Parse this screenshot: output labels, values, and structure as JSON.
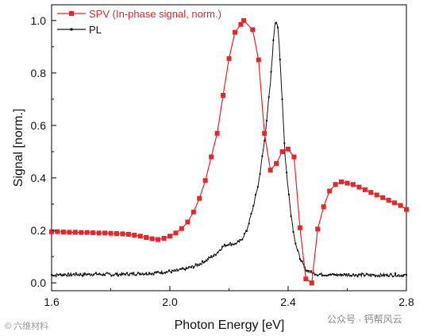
{
  "chart_data": {
    "type": "line",
    "xlabel": "Photon Energy [eV]",
    "ylabel": "Signal [norm.]",
    "xlim": [
      1.6,
      2.8
    ],
    "ylim": [
      -0.03,
      1.06
    ],
    "x_ticks": [
      1.6,
      2.0,
      2.4,
      2.8
    ],
    "x_tick_labels": [
      "1.6",
      "2.0",
      "2.4",
      "2.8"
    ],
    "y_ticks": [
      0.0,
      0.2,
      0.4,
      0.6,
      0.8,
      1.0
    ],
    "y_tick_labels": [
      "0.0",
      "0.2",
      "0.4",
      "0.6",
      "0.8",
      "1.0"
    ],
    "grid": false,
    "legend_position": "top-left",
    "series": [
      {
        "name": "SPV (In-phase signal, norm.)",
        "color": "#e8262a",
        "marker": "square",
        "points": [
          [
            1.6,
            0.195
          ],
          [
            1.62,
            0.195
          ],
          [
            1.64,
            0.194
          ],
          [
            1.66,
            0.193
          ],
          [
            1.68,
            0.193
          ],
          [
            1.7,
            0.192
          ],
          [
            1.72,
            0.192
          ],
          [
            1.74,
            0.191
          ],
          [
            1.76,
            0.19
          ],
          [
            1.78,
            0.19
          ],
          [
            1.8,
            0.189
          ],
          [
            1.82,
            0.188
          ],
          [
            1.84,
            0.187
          ],
          [
            1.86,
            0.185
          ],
          [
            1.88,
            0.182
          ],
          [
            1.9,
            0.178
          ],
          [
            1.92,
            0.173
          ],
          [
            1.94,
            0.168
          ],
          [
            1.96,
            0.165
          ],
          [
            1.98,
            0.17
          ],
          [
            2.0,
            0.178
          ],
          [
            2.02,
            0.19
          ],
          [
            2.04,
            0.207
          ],
          [
            2.06,
            0.232
          ],
          [
            2.08,
            0.27
          ],
          [
            2.1,
            0.322
          ],
          [
            2.12,
            0.39
          ],
          [
            2.14,
            0.48
          ],
          [
            2.16,
            0.57
          ],
          [
            2.18,
            0.715
          ],
          [
            2.2,
            0.855
          ],
          [
            2.22,
            0.955
          ],
          [
            2.24,
            0.985
          ],
          [
            2.25,
            1.0
          ],
          [
            2.28,
            0.965
          ],
          [
            2.3,
            0.85
          ],
          [
            2.32,
            0.57
          ],
          [
            2.34,
            0.43
          ],
          [
            2.36,
            0.455
          ],
          [
            2.38,
            0.5
          ],
          [
            2.4,
            0.51
          ],
          [
            2.42,
            0.48
          ],
          [
            2.44,
            0.21
          ],
          [
            2.46,
            0.015
          ],
          [
            2.48,
            0.0
          ],
          [
            2.5,
            0.205
          ],
          [
            2.52,
            0.29
          ],
          [
            2.54,
            0.35
          ],
          [
            2.56,
            0.375
          ],
          [
            2.58,
            0.385
          ],
          [
            2.6,
            0.38
          ],
          [
            2.62,
            0.375
          ],
          [
            2.64,
            0.365
          ],
          [
            2.66,
            0.355
          ],
          [
            2.68,
            0.345
          ],
          [
            2.7,
            0.335
          ],
          [
            2.72,
            0.325
          ],
          [
            2.74,
            0.315
          ],
          [
            2.76,
            0.305
          ],
          [
            2.78,
            0.295
          ],
          [
            2.8,
            0.28
          ]
        ]
      },
      {
        "name": "PL",
        "color": "#111111",
        "marker": "small-square",
        "points": [
          [
            1.6,
            0.03
          ],
          [
            1.65,
            0.032
          ],
          [
            1.7,
            0.031
          ],
          [
            1.75,
            0.033
          ],
          [
            1.8,
            0.032
          ],
          [
            1.85,
            0.033
          ],
          [
            1.9,
            0.035
          ],
          [
            1.95,
            0.038
          ],
          [
            2.0,
            0.043
          ],
          [
            2.05,
            0.052
          ],
          [
            2.1,
            0.07
          ],
          [
            2.15,
            0.105
          ],
          [
            2.18,
            0.138
          ],
          [
            2.2,
            0.15
          ],
          [
            2.22,
            0.148
          ],
          [
            2.24,
            0.16
          ],
          [
            2.26,
            0.2
          ],
          [
            2.28,
            0.28
          ],
          [
            2.3,
            0.38
          ],
          [
            2.32,
            0.54
          ],
          [
            2.34,
            0.76
          ],
          [
            2.35,
            0.92
          ],
          [
            2.355,
            0.985
          ],
          [
            2.36,
            1.0
          ],
          [
            2.365,
            0.975
          ],
          [
            2.37,
            0.9
          ],
          [
            2.38,
            0.7
          ],
          [
            2.39,
            0.48
          ],
          [
            2.4,
            0.36
          ],
          [
            2.41,
            0.26
          ],
          [
            2.42,
            0.18
          ],
          [
            2.43,
            0.13
          ],
          [
            2.44,
            0.095
          ],
          [
            2.45,
            0.07
          ],
          [
            2.46,
            0.05
          ],
          [
            2.48,
            0.038
          ],
          [
            2.5,
            0.033
          ],
          [
            2.55,
            0.031
          ],
          [
            2.6,
            0.03
          ],
          [
            2.65,
            0.03
          ],
          [
            2.7,
            0.03
          ],
          [
            2.75,
            0.03
          ],
          [
            2.8,
            0.03
          ]
        ]
      }
    ]
  },
  "watermarks": {
    "left": "© 六维材料",
    "right": "公众号 · 钙帮风云"
  }
}
